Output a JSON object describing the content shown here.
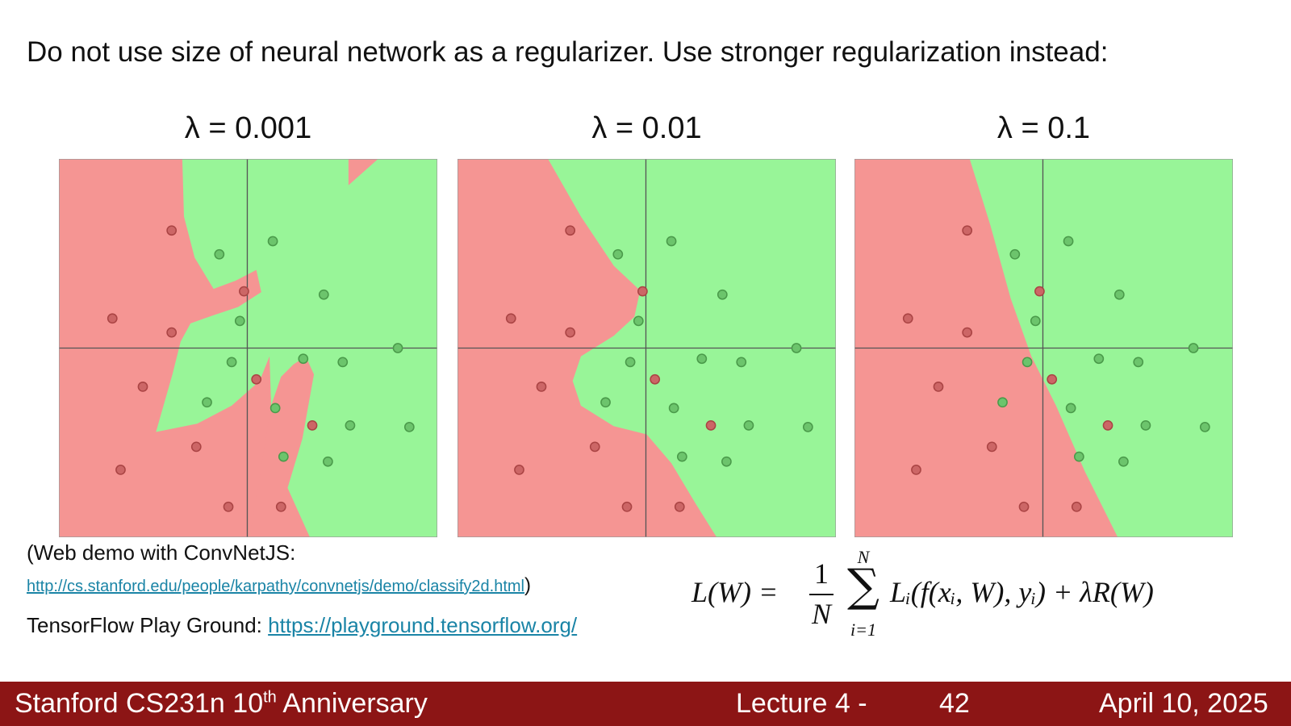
{
  "title": "Do not use size of neural network as a regularizer. Use stronger regularization instead:",
  "panels": [
    {
      "label": "λ = 0.001"
    },
    {
      "label": "λ = 0.01"
    },
    {
      "label": "λ = 0.1"
    }
  ],
  "demo": {
    "text": "(Web demo with ConvNetJS:",
    "url": "http://cs.stanford.edu/people/karpathy/convnetjs/demo/classify2d.html",
    "close": ")"
  },
  "playground": {
    "text": "TensorFlow Play Ground:",
    "url": "https://playground.tensorflow.org/"
  },
  "formula": {
    "lhs": "L(W) =",
    "num": "1",
    "den": "N",
    "sum": "∑",
    "sum_top": "N",
    "sum_bottom": "i=1",
    "body": "Lᵢ(f(xᵢ, W), yᵢ) + λR(W)"
  },
  "footer": {
    "course": "Stanford CS231n 10",
    "sup": "th",
    "course_end": " Anniversary",
    "lecture": "Lecture 4 -",
    "page": "42",
    "date": "April 10, 2025"
  }
}
